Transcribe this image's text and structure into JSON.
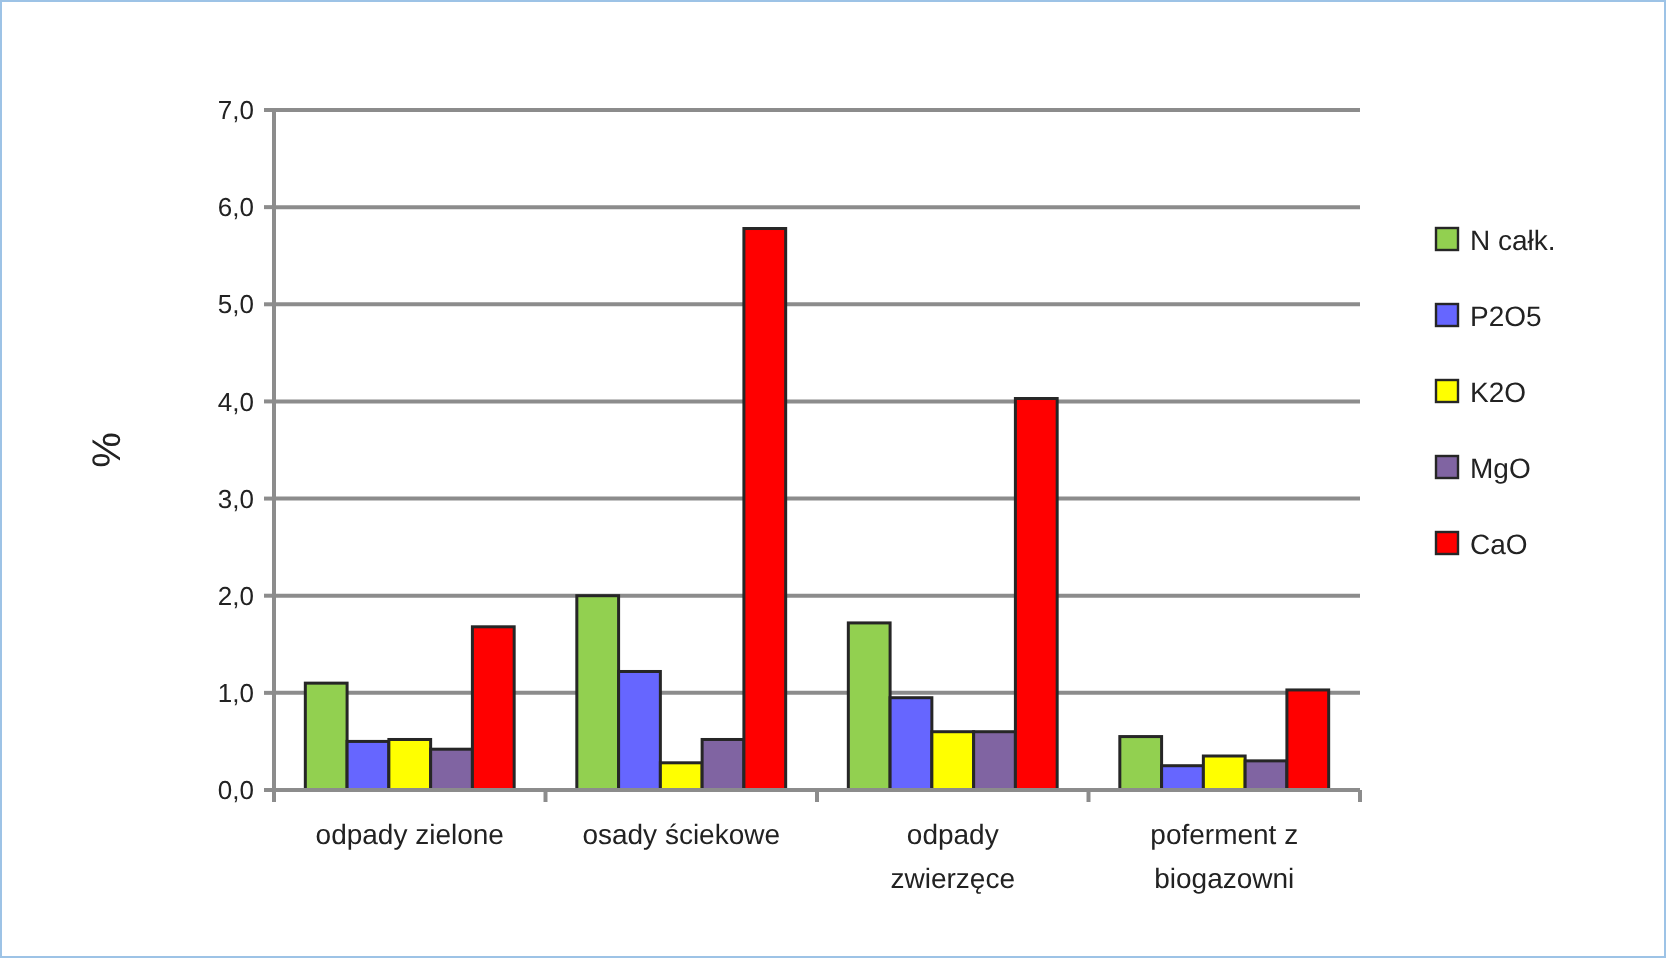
{
  "chart_data": {
    "type": "bar",
    "ylabel": "%",
    "categories": [
      "odpady zielone",
      "osady ściekowe",
      "odpady zwierzęce",
      "poferment z biogazowni"
    ],
    "series": [
      {
        "name": "N całk.",
        "color": "#92d050",
        "values": [
          1.1,
          2.0,
          1.72,
          0.55
        ]
      },
      {
        "name": "P2O5",
        "color": "#6666ff",
        "values": [
          0.5,
          1.22,
          0.95,
          0.25
        ]
      },
      {
        "name": "K2O",
        "color": "#ffff00",
        "values": [
          0.52,
          0.28,
          0.6,
          0.35
        ]
      },
      {
        "name": "MgO",
        "color": "#8064a2",
        "values": [
          0.42,
          0.52,
          0.6,
          0.3
        ]
      },
      {
        "name": "CaO",
        "color": "#ff0000",
        "values": [
          1.68,
          5.78,
          4.03,
          1.03
        ]
      }
    ],
    "ylim": [
      0,
      7
    ],
    "yticks": [
      {
        "value": 0,
        "label": "0,0"
      },
      {
        "value": 1,
        "label": "1,0"
      },
      {
        "value": 2,
        "label": "2,0"
      },
      {
        "value": 3,
        "label": "3,0"
      },
      {
        "value": 4,
        "label": "4,0"
      },
      {
        "value": 5,
        "label": "5,0"
      },
      {
        "value": 6,
        "label": "6,0"
      },
      {
        "value": 7,
        "label": "7,0"
      }
    ],
    "grid": "y",
    "legend": "right"
  }
}
